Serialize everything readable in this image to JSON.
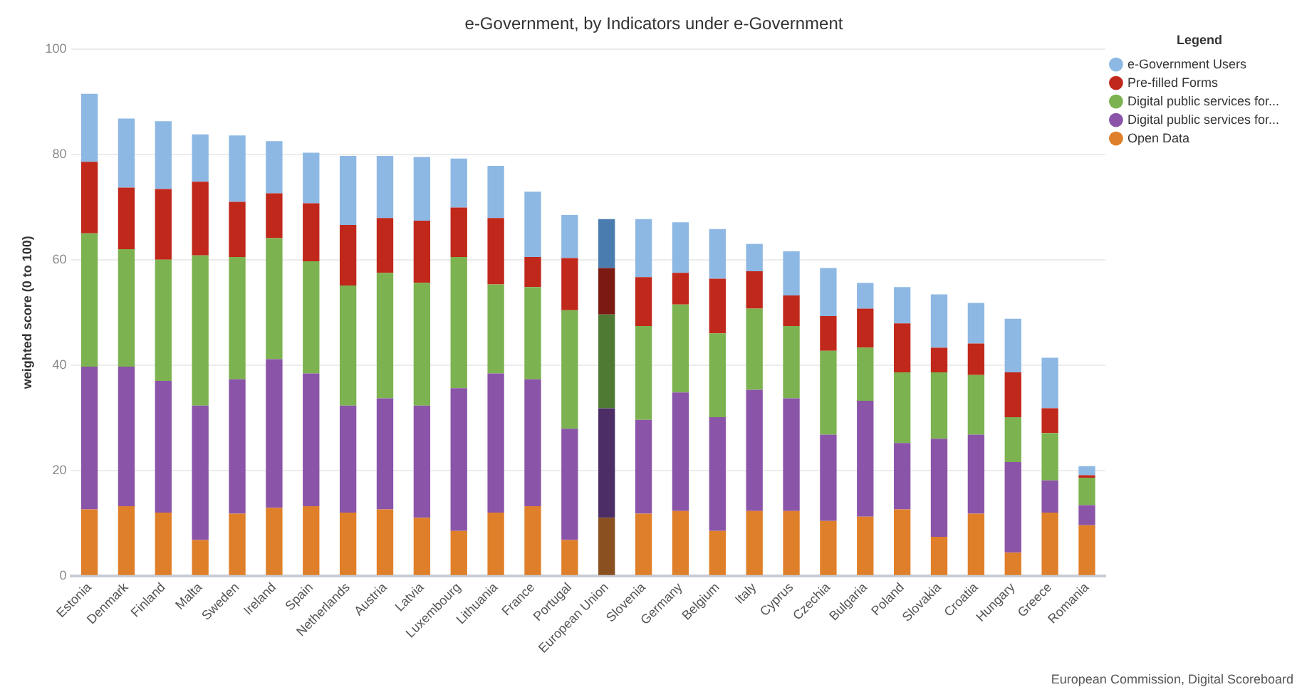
{
  "chart_data": {
    "type": "bar",
    "title": "e-Government, by Indicators under e-Government",
    "ylabel": "weighted score (0 to 100)",
    "legend_title": "Legend",
    "categories": [
      "Estonia",
      "Denmark",
      "Finland",
      "Malta",
      "Sweden",
      "Ireland",
      "Spain",
      "Netherlands",
      "Austria",
      "Latvia",
      "Luxembourg",
      "Lithuania",
      "France",
      "Portugal",
      "European Union",
      "Slovenia",
      "Germany",
      "Belgium",
      "Italy",
      "Cyprus",
      "Czechia",
      "Bulgaria",
      "Poland",
      "Slovakia",
      "Croatia",
      "Hungary",
      "Greece",
      "Romania"
    ],
    "stacked": true,
    "ylim": [
      0,
      100
    ],
    "yticks": [
      0,
      20,
      40,
      60,
      80,
      100
    ],
    "grid": "y",
    "legend": "top right",
    "series": [
      {
        "name": "Open Data",
        "colors": [
          "#e07f2a",
          "#e07f2a",
          "#e07f2a",
          "#e07f2a",
          "#e07f2a",
          "#e07f2a",
          "#e07f2a",
          "#e07f2a",
          "#e07f2a",
          "#e07f2a",
          "#e07f2a",
          "#e07f2a",
          "#e07f2a",
          "#e07f2a",
          "#8a5020",
          "#e07f2a",
          "#e07f2a",
          "#e07f2a",
          "#e07f2a",
          "#e07f2a",
          "#e07f2a",
          "#e07f2a",
          "#e07f2a",
          "#e07f2a",
          "#e07f2a",
          "#e07f2a",
          "#e07f2a",
          "#e07f2a"
        ],
        "values": [
          12.6,
          13.2,
          12,
          6.8,
          11.8,
          12.9,
          13.2,
          12,
          12.6,
          11,
          8.5,
          12,
          13.2,
          6.8,
          11,
          11.8,
          12.3,
          8.5,
          12.3,
          12.3,
          10.4,
          11.2,
          12.6,
          7.4,
          11.8,
          4.4,
          12,
          9.6
        ]
      },
      {
        "name": "Digital public services for...",
        "colors": [
          "#8a54a8",
          "#8a54a8",
          "#8a54a8",
          "#8a54a8",
          "#8a54a8",
          "#8a54a8",
          "#8a54a8",
          "#8a54a8",
          "#8a54a8",
          "#8a54a8",
          "#8a54a8",
          "#8a54a8",
          "#8a54a8",
          "#8a54a8",
          "#4c2d66",
          "#8a54a8",
          "#8a54a8",
          "#8a54a8",
          "#8a54a8",
          "#8a54a8",
          "#8a54a8",
          "#8a54a8",
          "#8a54a8",
          "#8a54a8",
          "#8a54a8",
          "#8a54a8",
          "#8a54a8",
          "#8a54a8"
        ],
        "values": [
          27.1,
          26.5,
          25,
          25.5,
          25.5,
          28.2,
          25.2,
          20.3,
          21.1,
          21.3,
          27.1,
          26.4,
          24.1,
          21.1,
          20.8,
          17.8,
          22.5,
          21.6,
          23,
          21.4,
          16.4,
          22,
          12.6,
          18.6,
          15,
          17.2,
          6.1,
          3.8
        ]
      },
      {
        "name": "Digital public services for...",
        "colors": [
          "#7cb250",
          "#7cb250",
          "#7cb250",
          "#7cb250",
          "#7cb250",
          "#7cb250",
          "#7cb250",
          "#7cb250",
          "#7cb250",
          "#7cb250",
          "#7cb250",
          "#7cb250",
          "#7cb250",
          "#7cb250",
          "#4e7a34",
          "#7cb250",
          "#7cb250",
          "#7cb250",
          "#7cb250",
          "#7cb250",
          "#7cb250",
          "#7cb250",
          "#7cb250",
          "#7cb250",
          "#7cb250",
          "#7cb250",
          "#7cb250",
          "#7cb250"
        ],
        "values": [
          25.3,
          22.3,
          23,
          28.5,
          23.2,
          23,
          21.3,
          22.8,
          23.8,
          23.3,
          24.9,
          16.9,
          17.5,
          22.5,
          17.8,
          17.8,
          16.7,
          15.9,
          15.4,
          13.7,
          15.9,
          10.1,
          13.4,
          12.6,
          11.3,
          8.5,
          9,
          5.2
        ]
      },
      {
        "name": "Pre-filled Forms",
        "colors": [
          "#c0281c",
          "#c0281c",
          "#c0281c",
          "#c0281c",
          "#c0281c",
          "#c0281c",
          "#c0281c",
          "#c0281c",
          "#c0281c",
          "#c0281c",
          "#c0281c",
          "#c0281c",
          "#c0281c",
          "#c0281c",
          "#7a1a12",
          "#c0281c",
          "#c0281c",
          "#c0281c",
          "#c0281c",
          "#c0281c",
          "#c0281c",
          "#c0281c",
          "#c0281c",
          "#c0281c",
          "#c0281c",
          "#c0281c",
          "#c0281c",
          "#c0281c"
        ],
        "values": [
          13.6,
          11.7,
          13.4,
          14,
          10.5,
          8.5,
          11,
          11.5,
          10.4,
          11.8,
          9.4,
          12.6,
          5.7,
          9.9,
          8.8,
          9.3,
          6,
          10.4,
          7.1,
          5.8,
          6.6,
          7.4,
          9.3,
          4.7,
          6,
          8.5,
          4.7,
          0.5
        ]
      },
      {
        "name": "e-Government Users",
        "colors": [
          "#8db8e4",
          "#8db8e4",
          "#8db8e4",
          "#8db8e4",
          "#8db8e4",
          "#8db8e4",
          "#8db8e4",
          "#8db8e4",
          "#8db8e4",
          "#8db8e4",
          "#8db8e4",
          "#8db8e4",
          "#8db8e4",
          "#8db8e4",
          "#4a7cb0",
          "#8db8e4",
          "#8db8e4",
          "#8db8e4",
          "#8db8e4",
          "#8db8e4",
          "#8db8e4",
          "#8db8e4",
          "#8db8e4",
          "#8db8e4",
          "#8db8e4",
          "#8db8e4",
          "#8db8e4",
          "#8db8e4"
        ],
        "values": [
          12.9,
          13.1,
          12.9,
          9,
          12.6,
          9.9,
          9.6,
          13.1,
          11.8,
          12.1,
          9.3,
          9.9,
          12.4,
          8.2,
          9.3,
          11,
          9.6,
          9.4,
          5.2,
          8.4,
          9.1,
          4.9,
          6.9,
          10.1,
          7.7,
          10.2,
          9.6,
          1.7
        ]
      }
    ],
    "annotations": [
      "European Commission, Digital Scoreboard"
    ]
  }
}
